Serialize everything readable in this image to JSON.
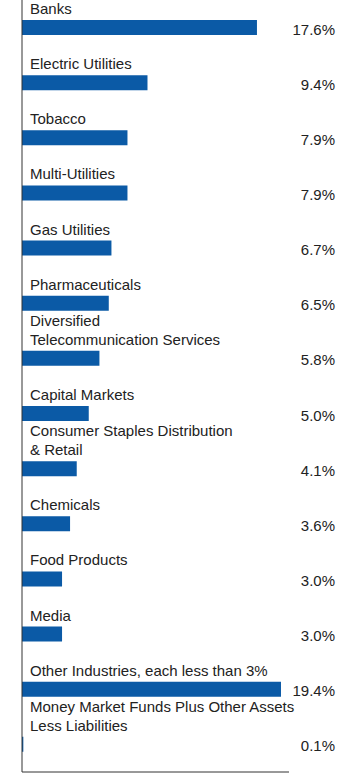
{
  "chart_data": {
    "type": "bar",
    "orientation": "horizontal",
    "categories": [
      "Banks",
      "Electric Utilities",
      "Tobacco",
      "Multi-Utilities",
      "Gas Utilities",
      "Pharmaceuticals",
      "Diversified\nTelecommunication Services",
      "Capital Markets",
      "Consumer Staples Distribution\n& Retail",
      "Chemicals",
      "Food Products",
      "Media",
      "Other Industries, each less than 3%",
      "Money Market Funds Plus Other Assets\nLess Liabilities"
    ],
    "values": [
      17.6,
      9.4,
      7.9,
      7.9,
      6.7,
      6.5,
      5.8,
      5.0,
      4.1,
      3.6,
      3.0,
      3.0,
      19.4,
      0.1
    ],
    "value_labels": [
      "17.6%",
      "9.4%",
      "7.9%",
      "7.9%",
      "6.7%",
      "6.5%",
      "5.8%",
      "5.0%",
      "4.1%",
      "3.6%",
      "3.0%",
      "3.0%",
      "19.4%",
      "0.1%"
    ],
    "data_labels": true,
    "color": "#0b5aa6",
    "xlim": [
      0,
      20
    ],
    "tick_labels": false,
    "grid": false
  }
}
